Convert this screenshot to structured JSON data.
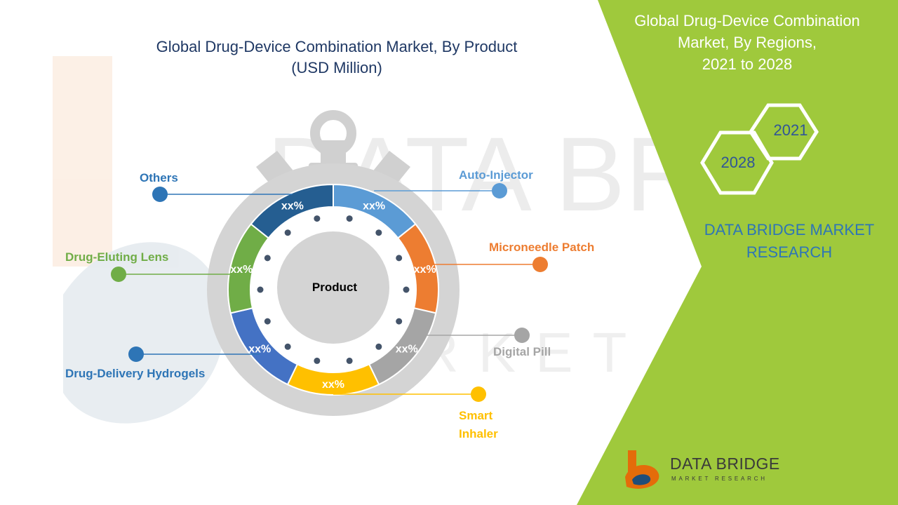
{
  "chart_data": {
    "type": "pie",
    "title": "Global Drug-Device Combination Market, By Product",
    "subtitle": "(USD Million)",
    "center_label": "Product",
    "value_label": "xx%",
    "categories": [
      "Auto-Injector",
      "Microneedle Patch",
      "Digital Pill",
      "Smart Inhaler",
      "Drug-Delivery Hydrogels",
      "Drug-Eluting Lens",
      "Others"
    ],
    "category_lines": [
      [
        "Auto-Injector"
      ],
      [
        "Microneedle Patch"
      ],
      [
        "Digital Pill"
      ],
      [
        "Smart",
        "Inhaler"
      ],
      [
        "Drug-Delivery Hydrogels"
      ],
      [
        "Drug-Eluting Lens"
      ],
      [
        "Others"
      ]
    ],
    "values": [
      1,
      1,
      1,
      1,
      1,
      1,
      1
    ],
    "colors": [
      "#5b9bd5",
      "#ed7d31",
      "#a5a5a5",
      "#ffc000",
      "#4472c4",
      "#70ad47",
      "#255e91"
    ],
    "label_colors": [
      "#5b9bd5",
      "#ed7d31",
      "#a5a5a5",
      "#ffc000",
      "#2e75b6",
      "#70ad47",
      "#2e75b6"
    ]
  },
  "side_panel": {
    "title_lines": [
      "Global Drug-Device Combination",
      "Market, By Regions,",
      "2021 to 2028"
    ],
    "years": [
      "2021",
      "2028"
    ],
    "brand_lines": [
      "DATA BRIDGE MARKET",
      "RESEARCH"
    ],
    "panel_color": "#9fc93c"
  },
  "logo": {
    "name": "DATA BRIDGE",
    "tagline": "MARKET RESEARCH"
  },
  "watermark": {
    "text": "DATA BRIDGE",
    "subtext": "MARKET RESEARCH"
  }
}
